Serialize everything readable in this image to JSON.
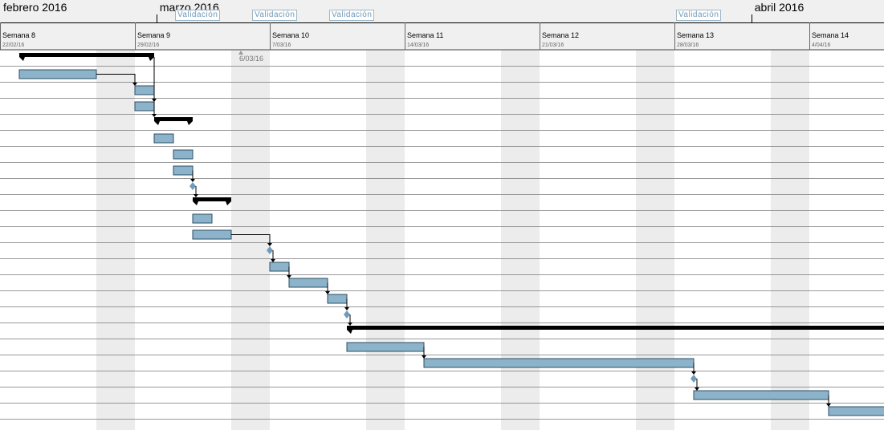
{
  "timeline": {
    "months": [
      {
        "label": "febrero 2016",
        "week": 0
      },
      {
        "label": "marzo 2016",
        "week": 1.16
      },
      {
        "label": "abril 2016",
        "week": 5.57
      }
    ],
    "weeks": [
      {
        "label": "Semana 8",
        "date": "22/02/16"
      },
      {
        "label": "Semana 9",
        "date": "29/02/16"
      },
      {
        "label": "Semana 10",
        "date": "7/03/16"
      },
      {
        "label": "Semana 11",
        "date": "14/03/16"
      },
      {
        "label": "Semana 12",
        "date": "21/03/16"
      },
      {
        "label": "Semana 13",
        "date": "28/03/16"
      },
      {
        "label": "Semana 14",
        "date": "4/04/16"
      }
    ],
    "validation_tags": [
      {
        "label": "Validación",
        "day": 10.5
      },
      {
        "label": "Validación",
        "day": 14.5
      },
      {
        "label": "Validación",
        "day": 18.5
      },
      {
        "label": "Validación",
        "day": 36.5
      }
    ],
    "today_marker": {
      "label": "6/03/16",
      "day": 13
    }
  },
  "tasks": [
    {
      "type": "summary",
      "start": 1,
      "end": 8
    },
    {
      "type": "task",
      "start": 1,
      "end": 5
    },
    {
      "type": "task",
      "start": 7,
      "end": 8
    },
    {
      "type": "task",
      "start": 7,
      "end": 8
    },
    {
      "type": "summary",
      "start": 8,
      "end": 10
    },
    {
      "type": "task",
      "start": 8,
      "end": 9
    },
    {
      "type": "task",
      "start": 9,
      "end": 10
    },
    {
      "type": "task",
      "start": 9,
      "end": 10
    },
    {
      "type": "milestone",
      "start": 10,
      "end": 10
    },
    {
      "type": "summary",
      "start": 10,
      "end": 12
    },
    {
      "type": "task",
      "start": 10,
      "end": 11
    },
    {
      "type": "task",
      "start": 10,
      "end": 12
    },
    {
      "type": "milestone",
      "start": 14,
      "end": 14
    },
    {
      "type": "task",
      "start": 14,
      "end": 15
    },
    {
      "type": "task",
      "start": 15,
      "end": 17
    },
    {
      "type": "task",
      "start": 17,
      "end": 18
    },
    {
      "type": "milestone",
      "start": 18,
      "end": 18
    },
    {
      "type": "summary",
      "start": 18,
      "end": 50
    },
    {
      "type": "task",
      "start": 18,
      "end": 22
    },
    {
      "type": "task",
      "start": 22,
      "end": 36
    },
    {
      "type": "milestone",
      "start": 36,
      "end": 36
    },
    {
      "type": "task",
      "start": 36,
      "end": 43
    },
    {
      "type": "task",
      "start": 43,
      "end": 50
    }
  ],
  "links": [
    [
      1,
      2
    ],
    [
      2,
      3
    ],
    [
      0,
      4
    ],
    [
      7,
      8
    ],
    [
      8,
      9
    ],
    [
      11,
      12
    ],
    [
      12,
      13
    ],
    [
      13,
      14
    ],
    [
      14,
      15
    ],
    [
      15,
      16
    ],
    [
      16,
      17
    ],
    [
      18,
      19
    ],
    [
      19,
      20
    ],
    [
      20,
      21
    ],
    [
      21,
      22
    ]
  ],
  "colors": {
    "bar_fill": "#8db3cb",
    "bar_border": "#2c4f66",
    "summary": "#000000",
    "weekend": "#ececec",
    "milestone": "#6f9bbd",
    "header_bg": "#f0f0f0",
    "row_line": "#7f7f7f"
  }
}
